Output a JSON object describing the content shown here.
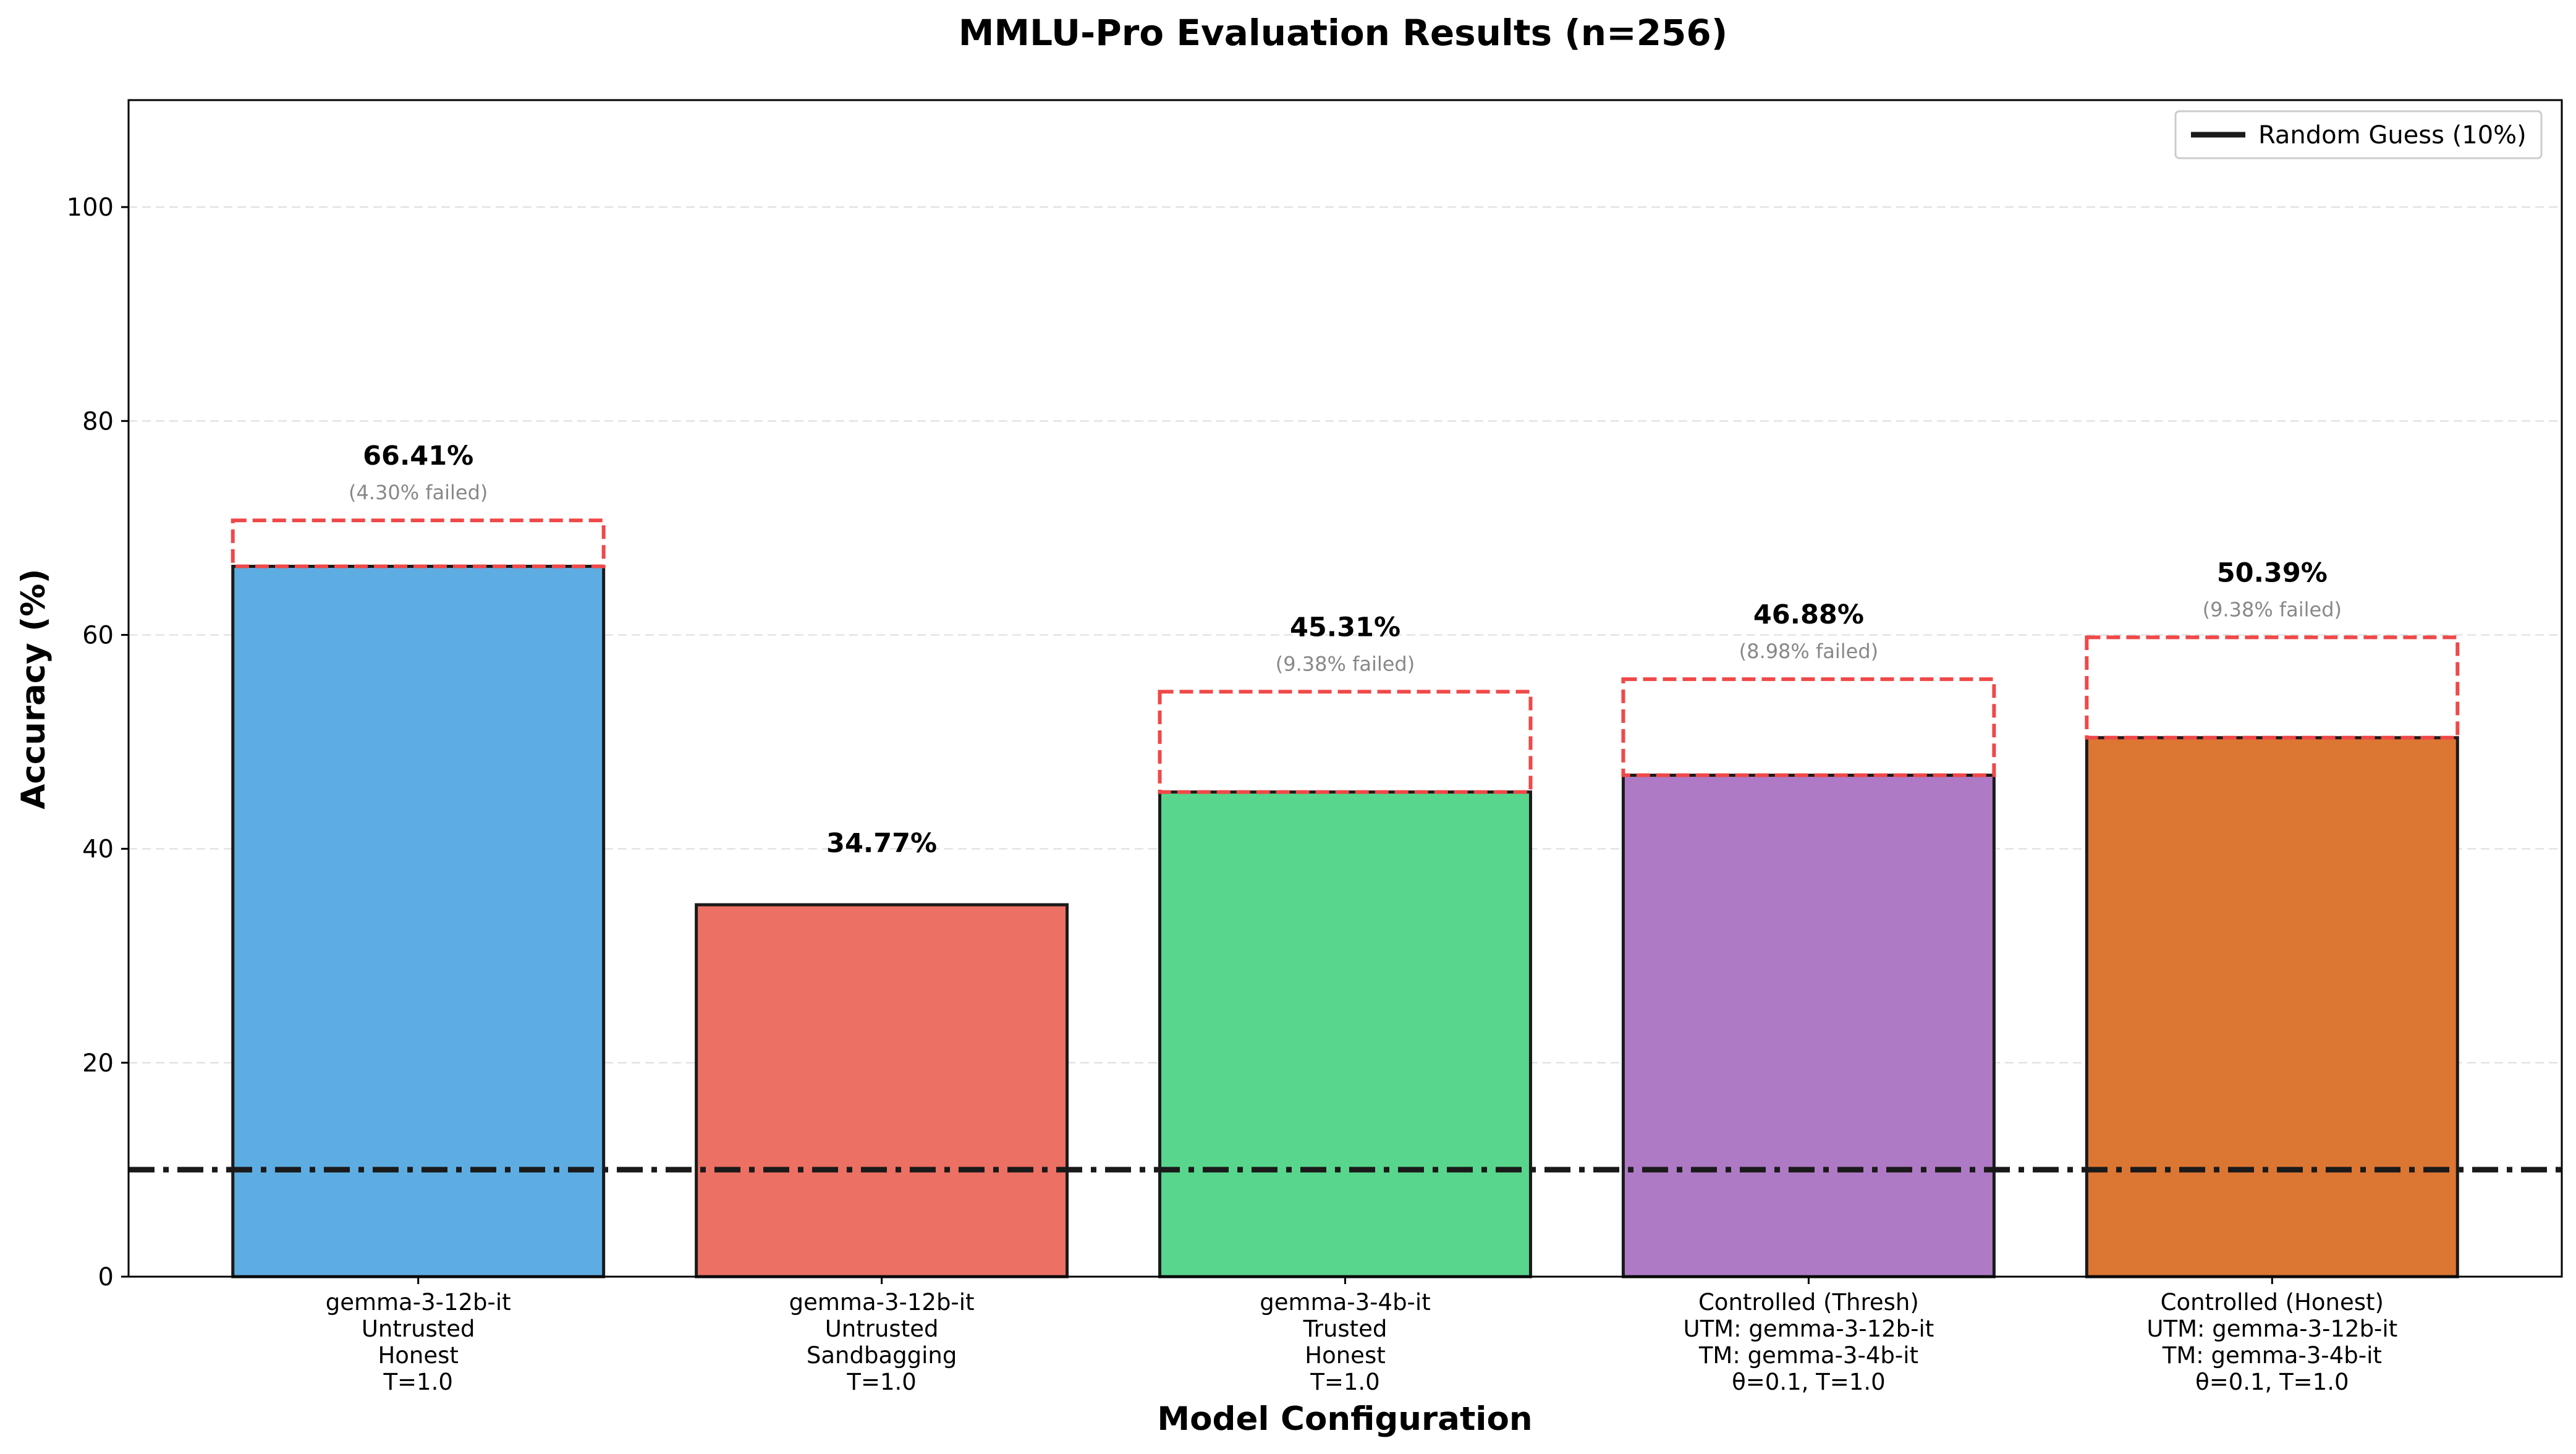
{
  "chart_data": {
    "type": "bar",
    "title": "MMLU-Pro Evaluation Results (n=256)",
    "xlabel": "Model Configuration",
    "ylabel": "Accuracy (%)",
    "ylim": [
      0,
      110
    ],
    "yticks": [
      "0",
      "20",
      "40",
      "60",
      "80",
      "100"
    ],
    "grid": true,
    "categories": [
      [
        "gemma-3-12b-it",
        "Untrusted",
        "Honest",
        "T=1.0"
      ],
      [
        "gemma-3-12b-it",
        "Untrusted",
        "Sandbagging",
        "T=1.0"
      ],
      [
        "gemma-3-4b-it",
        "Trusted",
        "Honest",
        "T=1.0"
      ],
      [
        "Controlled (Thresh)",
        "UTM: gemma-3-12b-it",
        "TM: gemma-3-4b-it",
        "θ=0.1, T=1.0"
      ],
      [
        "Controlled (Honest)",
        "UTM: gemma-3-12b-it",
        "TM: gemma-3-4b-it",
        "θ=0.1, T=1.0"
      ]
    ],
    "values": [
      66.41,
      34.77,
      45.31,
      46.88,
      50.39
    ],
    "value_labels": [
      "66.41%",
      "34.77%",
      "45.31%",
      "46.88%",
      "50.39%"
    ],
    "failed": [
      4.3,
      0,
      9.38,
      8.98,
      9.38
    ],
    "failed_labels": [
      "(4.30% failed)",
      "",
      "(9.38% failed)",
      "(8.98% failed)",
      "(9.38% failed)"
    ],
    "colors": [
      "#5dade2",
      "#ec7063",
      "#58d68d",
      "#af7ac5",
      "#dc7633"
    ],
    "failed_color": "#f04848",
    "reference_line": {
      "value": 10,
      "label": "Random Guess (10%)",
      "style": "dash-dot",
      "color": "#1a1a1a"
    },
    "legend": {
      "position": "top-right",
      "entries": [
        "Random Guess (10%)"
      ]
    }
  }
}
